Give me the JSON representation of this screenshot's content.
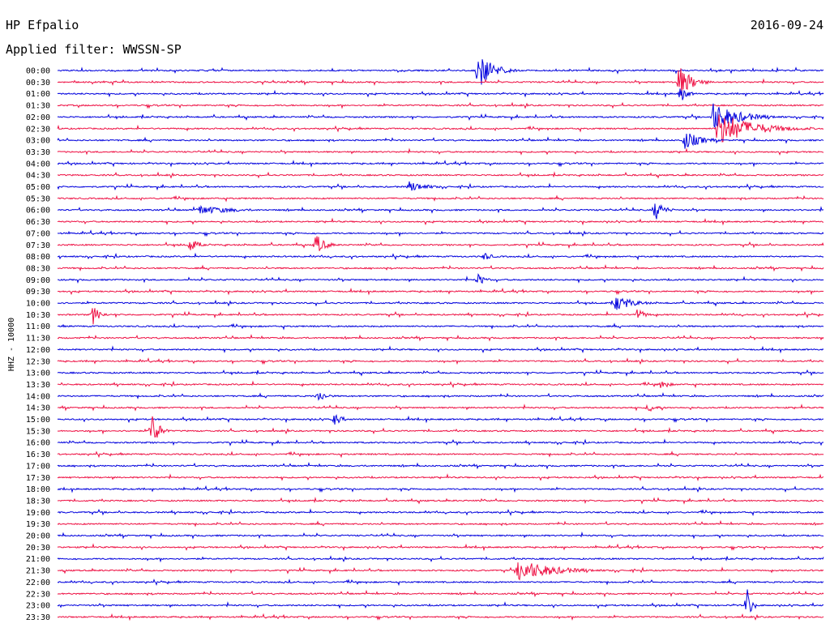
{
  "header": {
    "station": "HP Efpalio",
    "date": "2016-09-24",
    "filter": "Applied filter: WWSSN-SP"
  },
  "chart_data": {
    "type": "line",
    "title": "HP Efpalio",
    "subtitle": "Applied filter: WWSSN-SP",
    "ylabel": "HHZ - 10000",
    "colors": [
      "#0000dd",
      "#ee1144"
    ],
    "rows": [
      "00:00",
      "00:30",
      "01:00",
      "01:30",
      "02:00",
      "02:30",
      "03:00",
      "03:30",
      "04:00",
      "04:30",
      "05:00",
      "05:30",
      "06:00",
      "06:30",
      "07:00",
      "07:30",
      "08:00",
      "08:30",
      "09:00",
      "09:30",
      "10:00",
      "10:30",
      "11:00",
      "11:30",
      "12:00",
      "12:30",
      "13:00",
      "13:30",
      "14:00",
      "14:30",
      "15:00",
      "15:30",
      "16:00",
      "16:30",
      "17:00",
      "17:30",
      "18:00",
      "18:30",
      "19:00",
      "19:30",
      "20:00",
      "20:30",
      "21:00",
      "21:30",
      "22:00",
      "22:30",
      "23:00",
      "23:30"
    ]
  }
}
